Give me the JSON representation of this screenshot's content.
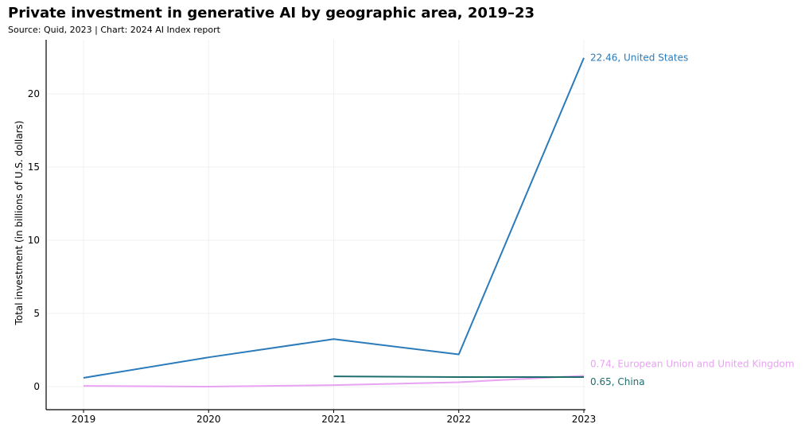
{
  "chart_data": {
    "type": "line",
    "title": "Private investment in generative AI by geographic area, 2019–23",
    "subtitle": "Source: Quid, 2023 | Chart: 2024 AI Index report",
    "xlabel": "",
    "ylabel": "Total investment (in billions of U.S. dollars)",
    "x": [
      2019,
      2020,
      2021,
      2022,
      2023
    ],
    "xlim": [
      2019,
      2023
    ],
    "ylim": [
      -1.5,
      24
    ],
    "yticks": [
      0,
      5,
      10,
      15,
      20
    ],
    "grid": true,
    "legend": "end-of-line labels",
    "series": [
      {
        "name": "United States",
        "color": "#2b7bba",
        "x": [
          2019,
          2020,
          2021,
          2022,
          2023
        ],
        "values": [
          0.6,
          2.0,
          3.25,
          2.2,
          22.46
        ],
        "end_label": "22.46, United States"
      },
      {
        "name": "European Union and United Kingdom",
        "color": "#e8a3f2",
        "x": [
          2019,
          2020,
          2021,
          2022,
          2023
        ],
        "values": [
          0.05,
          0.0,
          0.1,
          0.3,
          0.74
        ],
        "end_label": "0.74, European Union and United Kingdom"
      },
      {
        "name": "China",
        "color": "#1f6e6e",
        "x": [
          2021,
          2022,
          2023
        ],
        "values": [
          0.7,
          0.65,
          0.65
        ],
        "end_label": "0.65, China"
      }
    ]
  }
}
